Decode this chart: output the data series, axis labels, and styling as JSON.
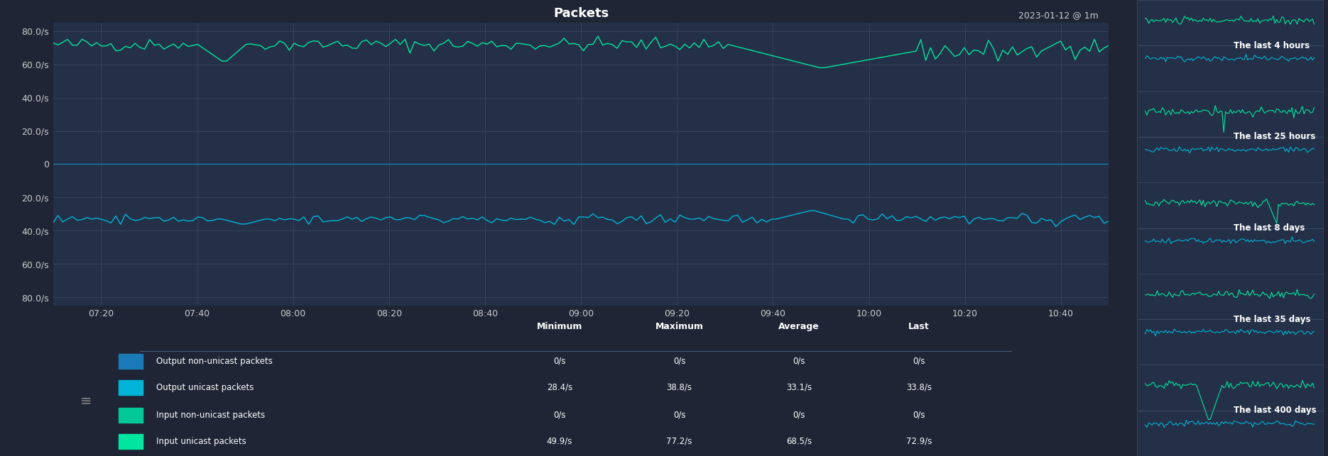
{
  "title": "Packets",
  "subtitle": "2023-01-12 @ 1m",
  "bg_color": "#1f2535",
  "plot_bg_color": "#243047",
  "grid_color": "#3a4a65",
  "text_color": "#ffffff",
  "axis_label_color": "#cccccc",
  "ytick_vals": [
    80,
    60,
    40,
    20,
    0,
    -20,
    -40,
    -60,
    -80
  ],
  "ytick_lbls": [
    "80.0/s",
    "60.0/s",
    "40.0/s",
    "20.0/s",
    "0",
    "20.0/s",
    "40.0/s",
    "60.0/s",
    "80.0/s"
  ],
  "xtick_labels": [
    "07:20",
    "07:40",
    "08:00",
    "08:20",
    "08:40",
    "09:00",
    "09:20",
    "09:40",
    "10:00",
    "10:20",
    "10:40"
  ],
  "legend_items": [
    {
      "label": "Output non-unicast packets",
      "color": "#1a7ab8",
      "min": "0/s",
      "max": "0/s",
      "avg": "0/s",
      "last": "0/s"
    },
    {
      "label": "Output unicast packets",
      "color": "#00b4d8",
      "min": "28.4/s",
      "max": "38.8/s",
      "avg": "33.1/s",
      "last": "33.8/s"
    },
    {
      "label": "Input non-unicast packets",
      "color": "#00c896",
      "min": "0/s",
      "max": "0/s",
      "avg": "0/s",
      "last": "0/s"
    },
    {
      "label": "Input unicast packets",
      "color": "#00e5a0",
      "min": "49.9/s",
      "max": "77.2/s",
      "avg": "68.5/s",
      "last": "72.9/s"
    }
  ],
  "thumbnail_labels": [
    "The last 4 hours",
    "The last 25 hours",
    "The last 8 days",
    "The last 35 days",
    "The last 400 days"
  ],
  "col_headers": [
    "Minimum",
    "Maximum",
    "Average",
    "Last"
  ],
  "input_unicast_color": "#00e5a0",
  "input_non_unicast_color": "#00c896",
  "output_unicast_color": "#00b4d8",
  "output_non_unicast_color": "#1a7ab8",
  "zero_line_color": "#4a5a7a",
  "separator_color": "#4a5a7a",
  "hamburger_color": "#888888"
}
